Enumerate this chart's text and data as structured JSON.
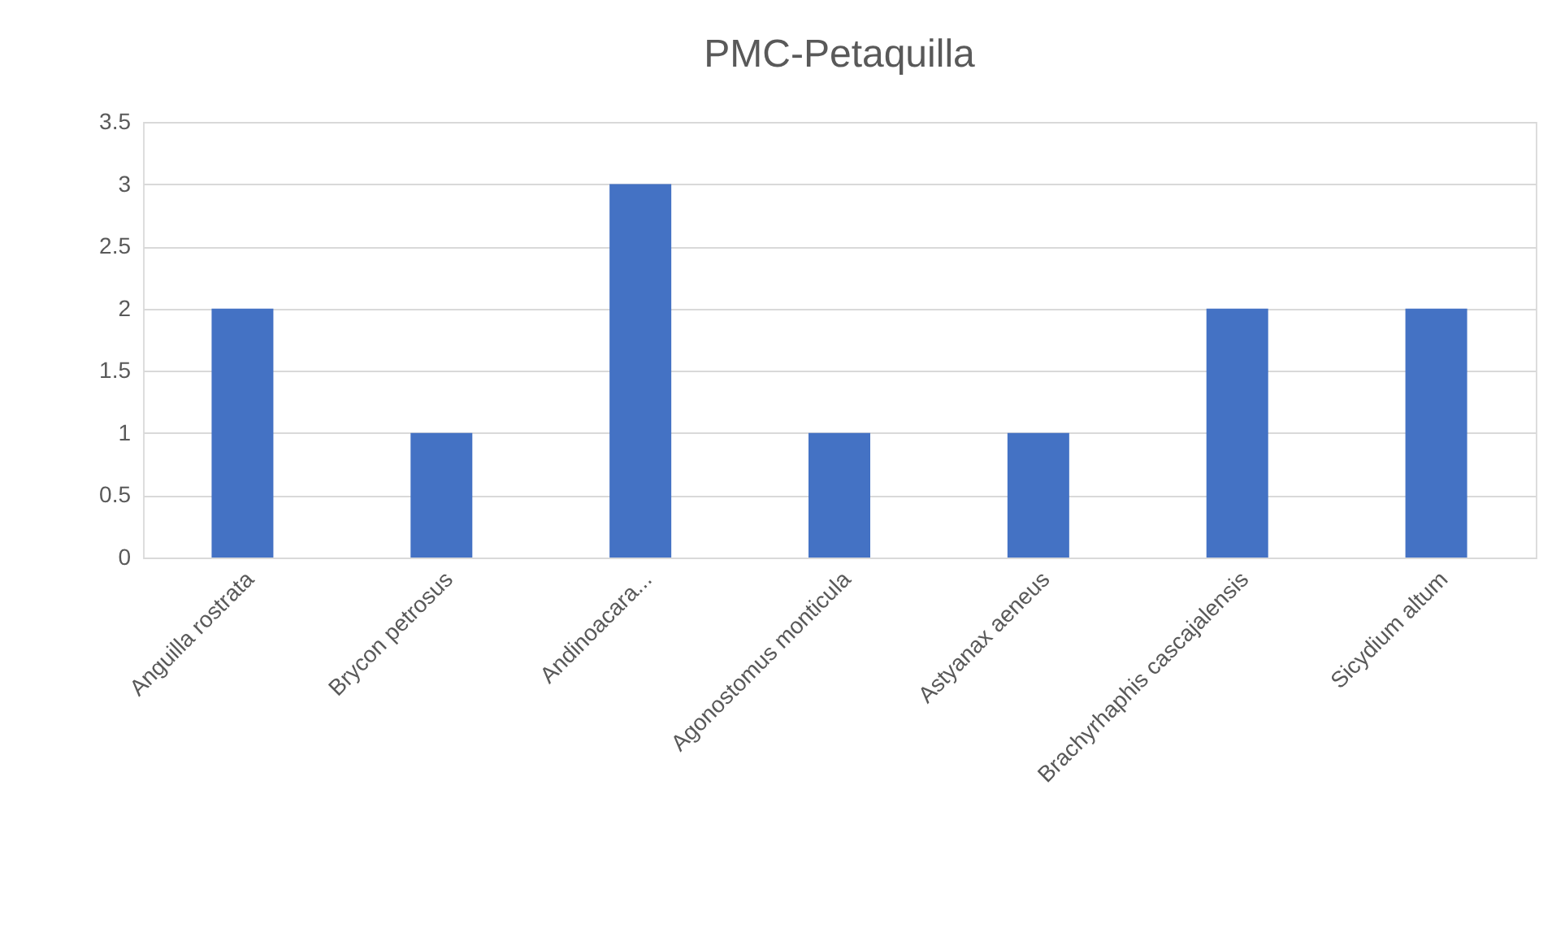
{
  "chart_data": {
    "type": "bar",
    "title": "PMC-Petaquilla",
    "categories": [
      "Anguilla rostrata",
      "Brycon petrosus",
      "Andinoacara...",
      "Agonostomus monticula",
      "Astyanax aeneus",
      "Brachyrhaphis cascajalensis",
      "Sicydium altum"
    ],
    "values": [
      2,
      1,
      3,
      1,
      1,
      2,
      2
    ],
    "color": "#4472c4",
    "ylim": [
      0,
      3.5
    ],
    "yticks": [
      0,
      0.5,
      1,
      1.5,
      2,
      2.5,
      3,
      3.5
    ],
    "grid": "y"
  }
}
